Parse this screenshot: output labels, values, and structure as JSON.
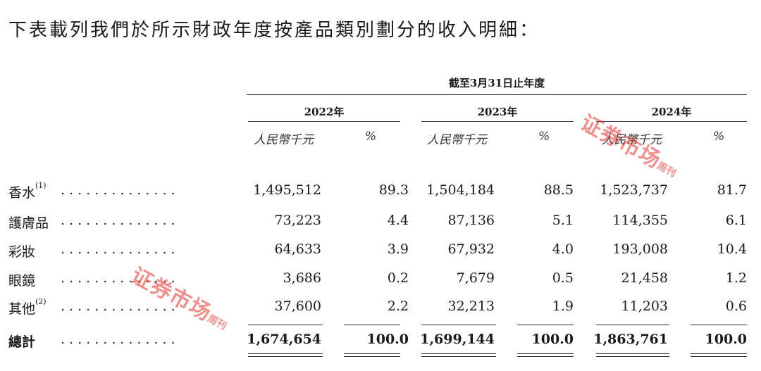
{
  "intro": "下表載列我們於所示財政年度按產品類別劃分的收入明細：",
  "period_header": "截至3月31日止年度",
  "years": [
    "2022年",
    "2023年",
    "2024年"
  ],
  "sub_headers": {
    "amount": "人民幣千元",
    "pct": "%"
  },
  "rows": [
    {
      "label": "香水",
      "note": "(1)",
      "v2022": "1,495,512",
      "p2022": "89.3",
      "v2023": "1,504,184",
      "p2023": "88.5",
      "v2024": "1,523,737",
      "p2024": "81.7"
    },
    {
      "label": "護膚品",
      "note": "",
      "v2022": "73,223",
      "p2022": "4.4",
      "v2023": "87,136",
      "p2023": "5.1",
      "v2024": "114,355",
      "p2024": "6.1"
    },
    {
      "label": "彩妝",
      "note": "",
      "v2022": "64,633",
      "p2022": "3.9",
      "v2023": "67,932",
      "p2023": "4.0",
      "v2024": "193,008",
      "p2024": "10.4"
    },
    {
      "label": "眼鏡",
      "note": "",
      "v2022": "3,686",
      "p2022": "0.2",
      "v2023": "7,679",
      "p2023": "0.5",
      "v2024": "21,458",
      "p2024": "1.2"
    },
    {
      "label": "其他",
      "note": "(2)",
      "v2022": "37,600",
      "p2022": "2.2",
      "v2023": "32,213",
      "p2023": "1.9",
      "v2024": "11,203",
      "p2024": "0.6"
    }
  ],
  "total": {
    "label": "總計",
    "v2022": "1,674,654",
    "p2022": "100.0",
    "v2023": "1,699,144",
    "p2023": "100.0",
    "v2024": "1,863,761",
    "p2024": "100.0"
  },
  "dot_leader": "..............",
  "watermark": {
    "main": "证券市场",
    "side": "周刊"
  }
}
